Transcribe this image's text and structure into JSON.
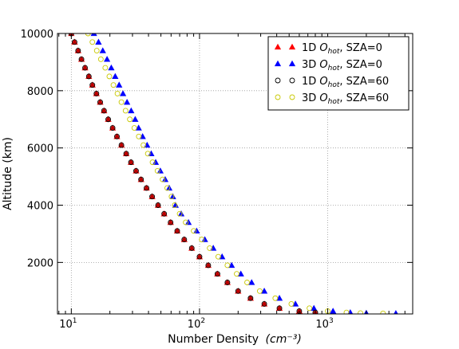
{
  "chart_data": {
    "type": "scatter",
    "title": "",
    "xlabel": "Number Density",
    "xlabel_unit": "(cm⁻³)",
    "ylabel": "Altitude (km)",
    "xscale": "log",
    "xlim": [
      7.8,
      4600
    ],
    "ylim": [
      200,
      10000
    ],
    "grid": true,
    "legend_position": "top-right",
    "x_ticks": [
      {
        "value": 10,
        "label": "10",
        "exp": "1"
      },
      {
        "value": 100,
        "label": "10",
        "exp": "2"
      },
      {
        "value": 1000,
        "label": "10",
        "exp": "3"
      }
    ],
    "y_ticks": [
      {
        "value": 2000,
        "label": "2000"
      },
      {
        "value": 4000,
        "label": "4000"
      },
      {
        "value": 6000,
        "label": "6000"
      },
      {
        "value": 8000,
        "label": "8000"
      },
      {
        "value": 10000,
        "label": "10000"
      }
    ],
    "series": [
      {
        "name": "1D O_hot, SZA=0",
        "marker": "triangle",
        "color": "#ff0000",
        "edge": "#ff0000",
        "points": [
          [
            10,
            10000
          ],
          [
            10.6,
            9700
          ],
          [
            11.3,
            9400
          ],
          [
            12,
            9100
          ],
          [
            12.8,
            8800
          ],
          [
            13.7,
            8500
          ],
          [
            14.6,
            8200
          ],
          [
            15.7,
            7900
          ],
          [
            16.8,
            7600
          ],
          [
            18,
            7300
          ],
          [
            19.4,
            7000
          ],
          [
            21,
            6700
          ],
          [
            22.7,
            6400
          ],
          [
            24.6,
            6100
          ],
          [
            26.8,
            5800
          ],
          [
            29.2,
            5500
          ],
          [
            32,
            5200
          ],
          [
            35,
            4900
          ],
          [
            38.6,
            4600
          ],
          [
            42.7,
            4300
          ],
          [
            47.5,
            4000
          ],
          [
            53,
            3700
          ],
          [
            59.5,
            3400
          ],
          [
            67,
            3100
          ],
          [
            76,
            2800
          ],
          [
            87,
            2500
          ],
          [
            100,
            2200
          ],
          [
            117,
            1900
          ],
          [
            138,
            1600
          ],
          [
            165,
            1300
          ],
          [
            200,
            1000
          ],
          [
            250,
            750
          ],
          [
            320,
            550
          ],
          [
            420,
            400
          ],
          [
            600,
            300
          ],
          [
            800,
            250
          ]
        ]
      },
      {
        "name": "3D O_hot, SZA=0",
        "marker": "triangle",
        "color": "#0000ff",
        "edge": "#0000ff",
        "points": [
          [
            15,
            10000
          ],
          [
            16.3,
            9700
          ],
          [
            17.6,
            9400
          ],
          [
            19,
            9100
          ],
          [
            20.5,
            8800
          ],
          [
            22,
            8500
          ],
          [
            23.6,
            8200
          ],
          [
            25.3,
            7900
          ],
          [
            27.2,
            7600
          ],
          [
            29.3,
            7300
          ],
          [
            31.5,
            7000
          ],
          [
            33.5,
            6700
          ],
          [
            36,
            6400
          ],
          [
            39,
            6100
          ],
          [
            42,
            5800
          ],
          [
            45.5,
            5500
          ],
          [
            49.5,
            5200
          ],
          [
            54,
            4900
          ],
          [
            58,
            4600
          ],
          [
            62,
            4300
          ],
          [
            65,
            4000
          ],
          [
            72,
            3700
          ],
          [
            82,
            3400
          ],
          [
            95,
            3100
          ],
          [
            110,
            2800
          ],
          [
            128,
            2500
          ],
          [
            150,
            2200
          ],
          [
            178,
            1900
          ],
          [
            210,
            1600
          ],
          [
            255,
            1300
          ],
          [
            320,
            1000
          ],
          [
            420,
            750
          ],
          [
            560,
            550
          ],
          [
            780,
            400
          ],
          [
            1100,
            300
          ],
          [
            1500,
            250
          ],
          [
            2000,
            230
          ],
          [
            3400,
            220
          ]
        ]
      },
      {
        "name": "1D O_hot, SZA=60",
        "marker": "circle",
        "color": "none",
        "edge": "#000000",
        "points": [
          [
            10,
            10000
          ],
          [
            10.6,
            9700
          ],
          [
            11.3,
            9400
          ],
          [
            12,
            9100
          ],
          [
            12.8,
            8800
          ],
          [
            13.7,
            8500
          ],
          [
            14.6,
            8200
          ],
          [
            15.7,
            7900
          ],
          [
            16.8,
            7600
          ],
          [
            18,
            7300
          ],
          [
            19.4,
            7000
          ],
          [
            21,
            6700
          ],
          [
            22.7,
            6400
          ],
          [
            24.6,
            6100
          ],
          [
            26.8,
            5800
          ],
          [
            29.2,
            5500
          ],
          [
            32,
            5200
          ],
          [
            35,
            4900
          ],
          [
            38.6,
            4600
          ],
          [
            42.7,
            4300
          ],
          [
            47.5,
            4000
          ],
          [
            53,
            3700
          ],
          [
            59.5,
            3400
          ],
          [
            67,
            3100
          ],
          [
            76,
            2800
          ],
          [
            87,
            2500
          ],
          [
            100,
            2200
          ],
          [
            117,
            1900
          ],
          [
            138,
            1600
          ],
          [
            165,
            1300
          ],
          [
            200,
            1000
          ],
          [
            250,
            750
          ],
          [
            320,
            550
          ],
          [
            420,
            400
          ],
          [
            600,
            300
          ],
          [
            800,
            250
          ]
        ]
      },
      {
        "name": "3D O_hot, SZA=60",
        "marker": "circle",
        "color": "none",
        "edge": "#c8c800",
        "points": [
          [
            13.5,
            10000
          ],
          [
            14.6,
            9700
          ],
          [
            15.8,
            9400
          ],
          [
            17,
            9100
          ],
          [
            18.4,
            8800
          ],
          [
            19.8,
            8500
          ],
          [
            21.3,
            8200
          ],
          [
            22.9,
            7900
          ],
          [
            24.6,
            7600
          ],
          [
            26.5,
            7300
          ],
          [
            28.6,
            7000
          ],
          [
            31,
            6700
          ],
          [
            33.6,
            6400
          ],
          [
            36.5,
            6100
          ],
          [
            39.5,
            5800
          ],
          [
            43,
            5500
          ],
          [
            47,
            5200
          ],
          [
            51.5,
            4900
          ],
          [
            56,
            4600
          ],
          [
            60.5,
            4300
          ],
          [
            64,
            4000
          ],
          [
            70,
            3700
          ],
          [
            78,
            3400
          ],
          [
            90,
            3100
          ],
          [
            104,
            2800
          ],
          [
            120,
            2500
          ],
          [
            140,
            2200
          ],
          [
            165,
            1900
          ],
          [
            195,
            1600
          ],
          [
            235,
            1300
          ],
          [
            295,
            1000
          ],
          [
            390,
            750
          ],
          [
            520,
            550
          ],
          [
            720,
            400
          ],
          [
            1000,
            300
          ],
          [
            1400,
            250
          ],
          [
            1800,
            230
          ],
          [
            2700,
            220
          ]
        ]
      }
    ],
    "legend": [
      {
        "label": "1D",
        "math": "O",
        "sub": "hot",
        "suffix": ", SZA=0"
      },
      {
        "label": "3D",
        "math": "O",
        "sub": "hot",
        "suffix": ", SZA=0"
      },
      {
        "label": "1D",
        "math": "O",
        "sub": "hot",
        "suffix": ", SZA=60"
      },
      {
        "label": "3D",
        "math": "O",
        "sub": "hot",
        "suffix": ", SZA=60"
      }
    ]
  }
}
